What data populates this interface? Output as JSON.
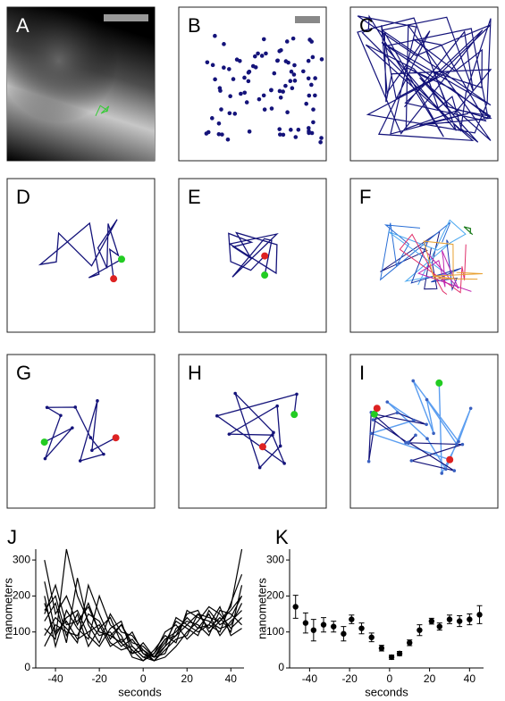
{
  "panel_labels": [
    "A",
    "B",
    "C",
    "D",
    "E",
    "F",
    "G",
    "H",
    "I"
  ],
  "chart_data": [
    {
      "type": "line",
      "label": "J",
      "xlabel": "seconds",
      "ylabel": "nanometers",
      "x": [
        -45,
        -40,
        -35,
        -30,
        -25,
        -20,
        -15,
        -10,
        -5,
        0,
        5,
        10,
        15,
        20,
        25,
        30,
        35,
        40,
        45
      ],
      "xlim": [
        -49,
        46
      ],
      "xticks": [
        -40,
        -20,
        0,
        20,
        40
      ],
      "ylim": [
        0,
        330
      ],
      "yticks": [
        0,
        100,
        200,
        300
      ],
      "series": [
        {
          "color": "#000000",
          "values": [
            300,
            150,
            200,
            120,
            180,
            100,
            90,
            120,
            60,
            30,
            20,
            60,
            90,
            120,
            150,
            140,
            130,
            170,
            330
          ]
        },
        {
          "color": "#000000",
          "values": [
            240,
            100,
            130,
            80,
            100,
            120,
            60,
            80,
            50,
            20,
            40,
            80,
            100,
            140,
            110,
            120,
            100,
            180,
            260
          ]
        },
        {
          "color": "#000000",
          "values": [
            160,
            200,
            90,
            150,
            60,
            110,
            140,
            70,
            40,
            50,
            30,
            70,
            130,
            110,
            90,
            160,
            120,
            140,
            200
          ]
        },
        {
          "color": "#000000",
          "values": [
            110,
            80,
            330,
            200,
            130,
            90,
            100,
            60,
            80,
            40,
            20,
            50,
            80,
            90,
            150,
            110,
            140,
            100,
            230
          ]
        },
        {
          "color": "#000000",
          "values": [
            90,
            140,
            110,
            70,
            230,
            150,
            80,
            120,
            70,
            60,
            30,
            40,
            110,
            130,
            120,
            90,
            160,
            150,
            120
          ]
        },
        {
          "color": "#000000",
          "values": [
            200,
            60,
            160,
            110,
            80,
            200,
            120,
            90,
            30,
            20,
            50,
            90,
            70,
            160,
            140,
            130,
            110,
            120,
            180
          ]
        },
        {
          "color": "#000000",
          "values": [
            130,
            180,
            70,
            250,
            120,
            70,
            150,
            100,
            90,
            50,
            20,
            30,
            60,
            100,
            130,
            170,
            150,
            110,
            140
          ]
        },
        {
          "color": "#000000",
          "values": [
            60,
            120,
            100,
            90,
            150,
            130,
            70,
            50,
            60,
            30,
            40,
            100,
            120,
            80,
            110,
            150,
            90,
            130,
            160
          ]
        },
        {
          "color": "#000000",
          "values": [
            180,
            90,
            140,
            160,
            90,
            60,
            110,
            130,
            40,
            70,
            30,
            60,
            140,
            120,
            100,
            120,
            170,
            90,
            110
          ]
        },
        {
          "color": "#000000",
          "values": [
            150,
            230,
            120,
            130,
            170,
            100,
            90,
            70,
            100,
            40,
            30,
            80,
            90,
            150,
            160,
            100,
            130,
            160,
            200
          ]
        }
      ]
    },
    {
      "type": "errorbar",
      "label": "K",
      "xlabel": "seconds",
      "ylabel": "nanometers",
      "color": "#000000",
      "x": [
        -47,
        -42,
        -38,
        -33,
        -28,
        -23,
        -19,
        -14,
        -9,
        -4,
        1,
        5,
        10,
        15,
        21,
        25,
        30,
        35,
        40,
        45
      ],
      "values": [
        170,
        125,
        105,
        120,
        115,
        95,
        135,
        110,
        85,
        55,
        30,
        40,
        70,
        105,
        130,
        115,
        135,
        130,
        135,
        148
      ],
      "errors": [
        32,
        28,
        30,
        20,
        15,
        20,
        12,
        15,
        12,
        8,
        6,
        6,
        8,
        15,
        8,
        10,
        12,
        15,
        15,
        25
      ],
      "xlim": [
        -50,
        47
      ],
      "xticks": [
        -40,
        -20,
        0,
        20,
        40
      ],
      "ylim": [
        0,
        330
      ],
      "yticks": [
        0,
        100,
        200,
        300
      ]
    }
  ]
}
